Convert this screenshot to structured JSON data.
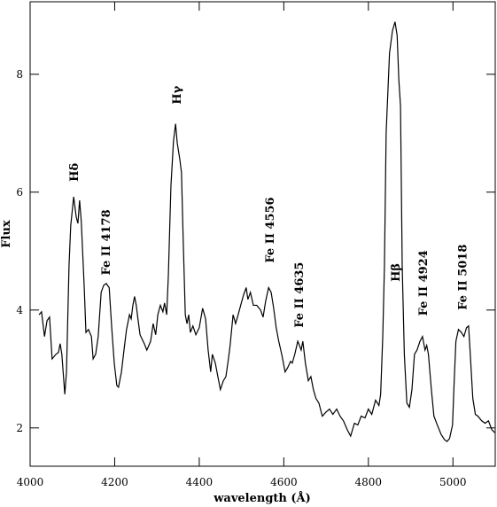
{
  "chart_data": {
    "type": "line",
    "xlabel": "wavelength (Å)",
    "ylabel": "Flux",
    "xlim": [
      4000,
      5100
    ],
    "ylim": [
      1.35,
      9.23
    ],
    "xticks": [
      4000,
      4200,
      4400,
      4600,
      4800,
      5000
    ],
    "yticks": [
      2,
      4,
      6,
      8
    ],
    "color": "#000000",
    "x": [
      4021,
      4027,
      4034,
      4040,
      4046,
      4052,
      4061,
      4067,
      4071,
      4075,
      4082,
      4086,
      4092,
      4096,
      4103,
      4109,
      4113,
      4117,
      4121,
      4128,
      4132,
      4138,
      4145,
      4149,
      4155,
      4161,
      4168,
      4174,
      4180,
      4187,
      4193,
      4199,
      4205,
      4209,
      4216,
      4222,
      4228,
      4235,
      4239,
      4243,
      4247,
      4251,
      4255,
      4260,
      4264,
      4270,
      4276,
      4285,
      4291,
      4297,
      4302,
      4308,
      4314,
      4318,
      4323,
      4327,
      4333,
      4339,
      4344,
      4348,
      4354,
      4358,
      4362,
      4367,
      4371,
      4375,
      4379,
      4385,
      4392,
      4400,
      4408,
      4415,
      4421,
      4427,
      4431,
      4438,
      4444,
      4450,
      4457,
      4463,
      4469,
      4473,
      4480,
      4486,
      4492,
      4498,
      4505,
      4511,
      4515,
      4521,
      4528,
      4536,
      4545,
      4551,
      4557,
      4564,
      4570,
      4576,
      4582,
      4588,
      4595,
      4603,
      4609,
      4616,
      4620,
      4626,
      4633,
      4637,
      4641,
      4645,
      4651,
      4658,
      4664,
      4670,
      4676,
      4683,
      4691,
      4700,
      4708,
      4716,
      4725,
      4733,
      4741,
      4750,
      4758,
      4767,
      4775,
      4783,
      4792,
      4800,
      4808,
      4817,
      4825,
      4829,
      4834,
      4838,
      4842,
      4850,
      4857,
      4863,
      4868,
      4872,
      4876,
      4880,
      4885,
      4891,
      4897,
      4903,
      4909,
      4915,
      4922,
      4928,
      4934,
      4938,
      4942,
      4949,
      4955,
      4963,
      4972,
      4980,
      4986,
      4992,
      4999,
      5003,
      5007,
      5013,
      5020,
      5026,
      5032,
      5037,
      5041,
      5047,
      5053,
      5059,
      5068,
      5076,
      5084,
      5092,
      5099
    ],
    "values": [
      3.92,
      3.97,
      3.55,
      3.82,
      3.88,
      3.17,
      3.25,
      3.28,
      3.43,
      3.25,
      2.57,
      2.95,
      4.75,
      5.43,
      5.92,
      5.58,
      5.47,
      5.86,
      5.5,
      4.38,
      3.62,
      3.67,
      3.55,
      3.17,
      3.25,
      3.55,
      4.3,
      4.42,
      4.45,
      4.38,
      3.7,
      3.1,
      2.72,
      2.69,
      2.95,
      3.32,
      3.67,
      3.92,
      3.85,
      4.08,
      4.23,
      4.08,
      3.85,
      3.58,
      3.52,
      3.43,
      3.32,
      3.47,
      3.77,
      3.58,
      3.92,
      4.08,
      3.97,
      4.12,
      3.92,
      4.6,
      6.1,
      6.86,
      7.16,
      6.83,
      6.56,
      6.33,
      5.2,
      3.92,
      3.77,
      3.92,
      3.62,
      3.73,
      3.58,
      3.7,
      4.03,
      3.85,
      3.32,
      2.95,
      3.25,
      3.1,
      2.87,
      2.65,
      2.8,
      2.87,
      3.17,
      3.4,
      3.92,
      3.77,
      3.92,
      4.08,
      4.26,
      4.38,
      4.18,
      4.3,
      4.08,
      4.08,
      4.0,
      3.88,
      4.15,
      4.38,
      4.3,
      4.03,
      3.7,
      3.47,
      3.25,
      2.95,
      3.02,
      3.13,
      3.1,
      3.25,
      3.47,
      3.4,
      3.32,
      3.47,
      3.1,
      2.8,
      2.87,
      2.65,
      2.5,
      2.42,
      2.2,
      2.27,
      2.32,
      2.23,
      2.32,
      2.2,
      2.12,
      1.97,
      1.86,
      2.08,
      2.05,
      2.2,
      2.17,
      2.32,
      2.23,
      2.47,
      2.38,
      2.57,
      3.55,
      4.75,
      7.0,
      8.36,
      8.74,
      8.89,
      8.66,
      7.91,
      7.46,
      4.75,
      3.25,
      2.42,
      2.35,
      2.65,
      3.25,
      3.32,
      3.47,
      3.55,
      3.32,
      3.4,
      3.25,
      2.65,
      2.2,
      2.05,
      1.89,
      1.8,
      1.77,
      1.82,
      2.05,
      2.8,
      3.47,
      3.67,
      3.62,
      3.55,
      3.7,
      3.73,
      3.25,
      2.5,
      2.23,
      2.2,
      2.12,
      2.08,
      2.12,
      1.97,
      1.92
    ],
    "annotations": [
      {
        "text": "Hδ",
        "x": 4105,
        "y": 6.18
      },
      {
        "text": "Fe II 4178",
        "x": 4180,
        "y": 4.59
      },
      {
        "text": "Hγ",
        "x": 4348,
        "y": 7.49
      },
      {
        "text": "Fe II 4556",
        "x": 4568,
        "y": 4.8
      },
      {
        "text": "Fe II 4635",
        "x": 4637,
        "y": 3.7
      },
      {
        "text": "Hβ",
        "x": 4865,
        "y": 4.48
      },
      {
        "text": "Fe II 4924",
        "x": 4930,
        "y": 3.9
      },
      {
        "text": "Fe II 5018",
        "x": 5024,
        "y": 4.0
      }
    ]
  }
}
